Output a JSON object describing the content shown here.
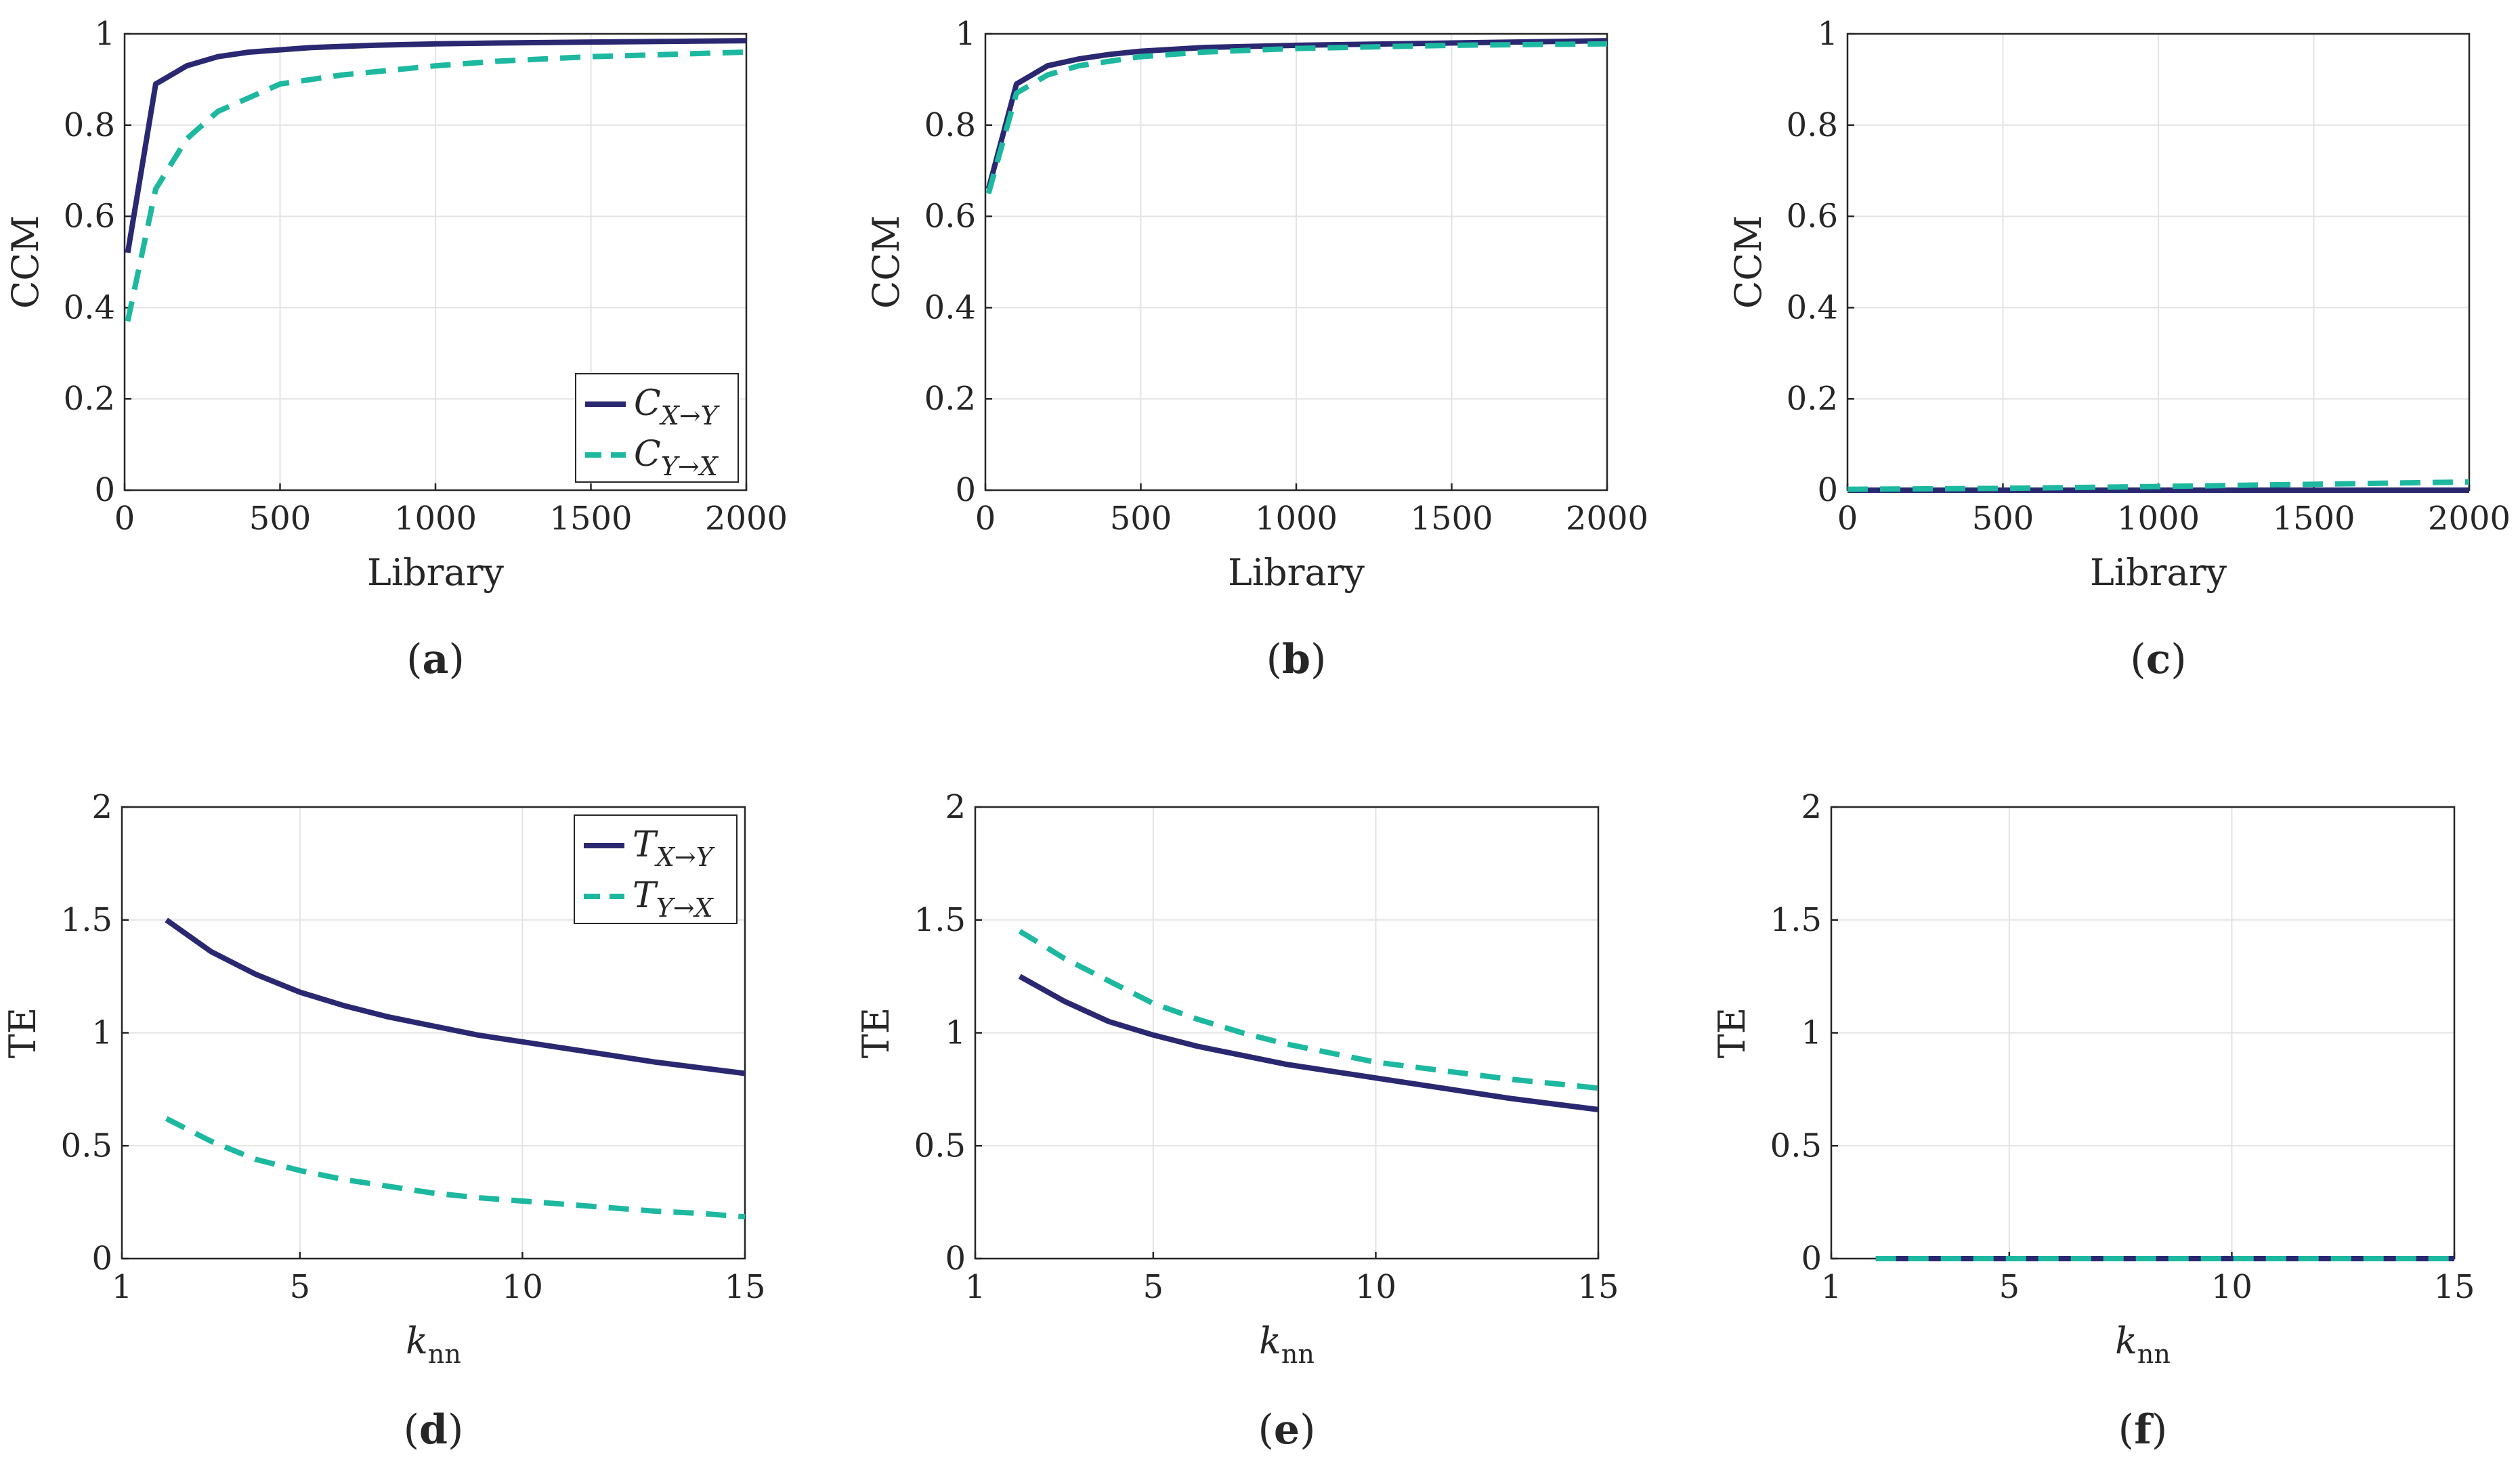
{
  "colors": {
    "series_solid": "#2b2872",
    "series_dashed": "#1db8a0",
    "grid": "#e3e3e3",
    "axis": "#262626"
  },
  "chart_data": [
    {
      "panel": "(a)",
      "panel_letter": "a",
      "type": "line",
      "xlabel": "Library",
      "ylabel": "CCM",
      "xlim": [
        0,
        2000
      ],
      "ylim": [
        0,
        1
      ],
      "xticks": [
        0,
        500,
        1000,
        1500,
        2000
      ],
      "yticks": [
        0,
        0.2,
        0.4,
        0.6,
        0.8,
        1
      ],
      "xtick_labels": [
        "0",
        "500",
        "1000",
        "1500",
        "2000"
      ],
      "ytick_labels": [
        "0",
        "0.2",
        "0.4",
        "0.6",
        "0.8",
        "1"
      ],
      "legend": {
        "position": "bottom-right",
        "entries": [
          {
            "name": "X→Y",
            "base": "C",
            "sub": "X→Y"
          },
          {
            "name": "Y→X",
            "base": "C",
            "sub": "Y→X"
          }
        ]
      },
      "series": [
        {
          "name": "C_X→Y",
          "style": "solid",
          "x": [
            10,
            100,
            200,
            300,
            400,
            500,
            600,
            800,
            1000,
            1200,
            1500,
            2000
          ],
          "y": [
            0.52,
            0.89,
            0.93,
            0.95,
            0.96,
            0.965,
            0.97,
            0.975,
            0.978,
            0.98,
            0.982,
            0.985
          ]
        },
        {
          "name": "C_Y→X",
          "style": "dashed",
          "x": [
            10,
            100,
            200,
            300,
            400,
            500,
            700,
            1000,
            1200,
            1500,
            2000
          ],
          "y": [
            0.37,
            0.66,
            0.77,
            0.83,
            0.86,
            0.89,
            0.91,
            0.93,
            0.94,
            0.95,
            0.96
          ]
        }
      ]
    },
    {
      "panel": "(b)",
      "panel_letter": "b",
      "type": "line",
      "xlabel": "Library",
      "ylabel": "CCM",
      "xlim": [
        0,
        2000
      ],
      "ylim": [
        0,
        1
      ],
      "xticks": [
        0,
        500,
        1000,
        1500,
        2000
      ],
      "yticks": [
        0,
        0.2,
        0.4,
        0.6,
        0.8,
        1
      ],
      "xtick_labels": [
        "0",
        "500",
        "1000",
        "1500",
        "2000"
      ],
      "ytick_labels": [
        "0",
        "0.2",
        "0.4",
        "0.6",
        "0.8",
        "1"
      ],
      "series": [
        {
          "name": "C_X→Y",
          "style": "solid",
          "x": [
            10,
            100,
            200,
            300,
            400,
            500,
            700,
            1000,
            1500,
            2000
          ],
          "y": [
            0.66,
            0.89,
            0.93,
            0.945,
            0.955,
            0.962,
            0.97,
            0.975,
            0.98,
            0.985
          ]
        },
        {
          "name": "C_Y→X",
          "style": "dashed",
          "x": [
            10,
            100,
            200,
            300,
            400,
            500,
            700,
            1000,
            1500,
            2000
          ],
          "y": [
            0.65,
            0.87,
            0.91,
            0.93,
            0.94,
            0.95,
            0.96,
            0.968,
            0.975,
            0.978
          ]
        }
      ]
    },
    {
      "panel": "(c)",
      "panel_letter": "c",
      "type": "line",
      "xlabel": "Library",
      "ylabel": "CCM",
      "xlim": [
        0,
        2000
      ],
      "ylim": [
        0,
        1
      ],
      "xticks": [
        0,
        500,
        1000,
        1500,
        2000
      ],
      "yticks": [
        0,
        0.2,
        0.4,
        0.6,
        0.8,
        1
      ],
      "xtick_labels": [
        "0",
        "500",
        "1000",
        "1500",
        "2000"
      ],
      "ytick_labels": [
        "0",
        "0.2",
        "0.4",
        "0.6",
        "0.8",
        "1"
      ],
      "series": [
        {
          "name": "C_X→Y",
          "style": "solid",
          "x": [
            0,
            500,
            1000,
            1500,
            2000
          ],
          "y": [
            0.0,
            0.0,
            0.0,
            0.0,
            0.0
          ]
        },
        {
          "name": "C_Y→X",
          "style": "dashed",
          "x": [
            0,
            500,
            1000,
            1500,
            2000
          ],
          "y": [
            0.002,
            0.004,
            0.008,
            0.013,
            0.018
          ]
        }
      ]
    },
    {
      "panel": "(d)",
      "panel_letter": "d",
      "type": "line",
      "xlabel": "k",
      "xlabel_sub": "nn",
      "ylabel": "TE",
      "xlim": [
        1,
        15
      ],
      "ylim": [
        0,
        2
      ],
      "xticks": [
        1,
        5,
        10,
        15
      ],
      "yticks": [
        0,
        0.5,
        1,
        1.5,
        2
      ],
      "xtick_labels": [
        "1",
        "5",
        "10",
        "15"
      ],
      "ytick_labels": [
        "0",
        "0.5",
        "1",
        "1.5",
        "2"
      ],
      "legend": {
        "position": "top-right",
        "entries": [
          {
            "name": "X→Y",
            "base": "T",
            "sub": "X→Y"
          },
          {
            "name": "Y→X",
            "base": "T",
            "sub": "Y→X"
          }
        ]
      },
      "series": [
        {
          "name": "T_X→Y",
          "style": "solid",
          "x": [
            2,
            3,
            4,
            5,
            6,
            7,
            8,
            9,
            10,
            11,
            12,
            13,
            14,
            15
          ],
          "y": [
            1.5,
            1.36,
            1.26,
            1.18,
            1.12,
            1.07,
            1.03,
            0.99,
            0.96,
            0.93,
            0.9,
            0.87,
            0.845,
            0.82
          ]
        },
        {
          "name": "T_Y→X",
          "style": "dashed",
          "x": [
            2,
            3,
            4,
            5,
            6,
            7,
            8,
            9,
            10,
            11,
            12,
            13,
            14,
            15
          ],
          "y": [
            0.62,
            0.52,
            0.44,
            0.39,
            0.35,
            0.32,
            0.29,
            0.27,
            0.255,
            0.24,
            0.225,
            0.21,
            0.2,
            0.185
          ]
        }
      ]
    },
    {
      "panel": "(e)",
      "panel_letter": "e",
      "type": "line",
      "xlabel": "k",
      "xlabel_sub": "nn",
      "ylabel": "TE",
      "xlim": [
        1,
        15
      ],
      "ylim": [
        0,
        2
      ],
      "xticks": [
        1,
        5,
        10,
        15
      ],
      "yticks": [
        0,
        0.5,
        1,
        1.5,
        2
      ],
      "xtick_labels": [
        "1",
        "5",
        "10",
        "15"
      ],
      "ytick_labels": [
        "0",
        "0.5",
        "1",
        "1.5",
        "2"
      ],
      "series": [
        {
          "name": "T_X→Y",
          "style": "solid",
          "x": [
            2,
            3,
            4,
            5,
            6,
            7,
            8,
            9,
            10,
            11,
            12,
            13,
            14,
            15
          ],
          "y": [
            1.25,
            1.14,
            1.05,
            0.99,
            0.94,
            0.9,
            0.86,
            0.83,
            0.8,
            0.77,
            0.74,
            0.71,
            0.685,
            0.66
          ]
        },
        {
          "name": "T_Y→X",
          "style": "dashed",
          "x": [
            2,
            3,
            4,
            5,
            6,
            7,
            8,
            9,
            10,
            11,
            12,
            13,
            14,
            15
          ],
          "y": [
            1.45,
            1.33,
            1.23,
            1.13,
            1.06,
            1.0,
            0.95,
            0.91,
            0.87,
            0.845,
            0.82,
            0.795,
            0.775,
            0.755
          ]
        }
      ]
    },
    {
      "panel": "(f)",
      "panel_letter": "f",
      "type": "line",
      "xlabel": "k",
      "xlabel_sub": "nn",
      "ylabel": "TE",
      "xlim": [
        1,
        15
      ],
      "ylim": [
        0,
        2
      ],
      "xticks": [
        1,
        5,
        10,
        15
      ],
      "yticks": [
        0,
        0.5,
        1,
        1.5,
        2
      ],
      "xtick_labels": [
        "1",
        "5",
        "10",
        "15"
      ],
      "ytick_labels": [
        "0",
        "0.5",
        "1",
        "1.5",
        "2"
      ],
      "series": [
        {
          "name": "T_X→Y",
          "style": "solid",
          "x": [
            2,
            15
          ],
          "y": [
            0.0,
            0.0
          ]
        },
        {
          "name": "T_Y→X",
          "style": "dashed",
          "x": [
            2,
            15
          ],
          "y": [
            0.0,
            0.0
          ]
        }
      ]
    }
  ]
}
